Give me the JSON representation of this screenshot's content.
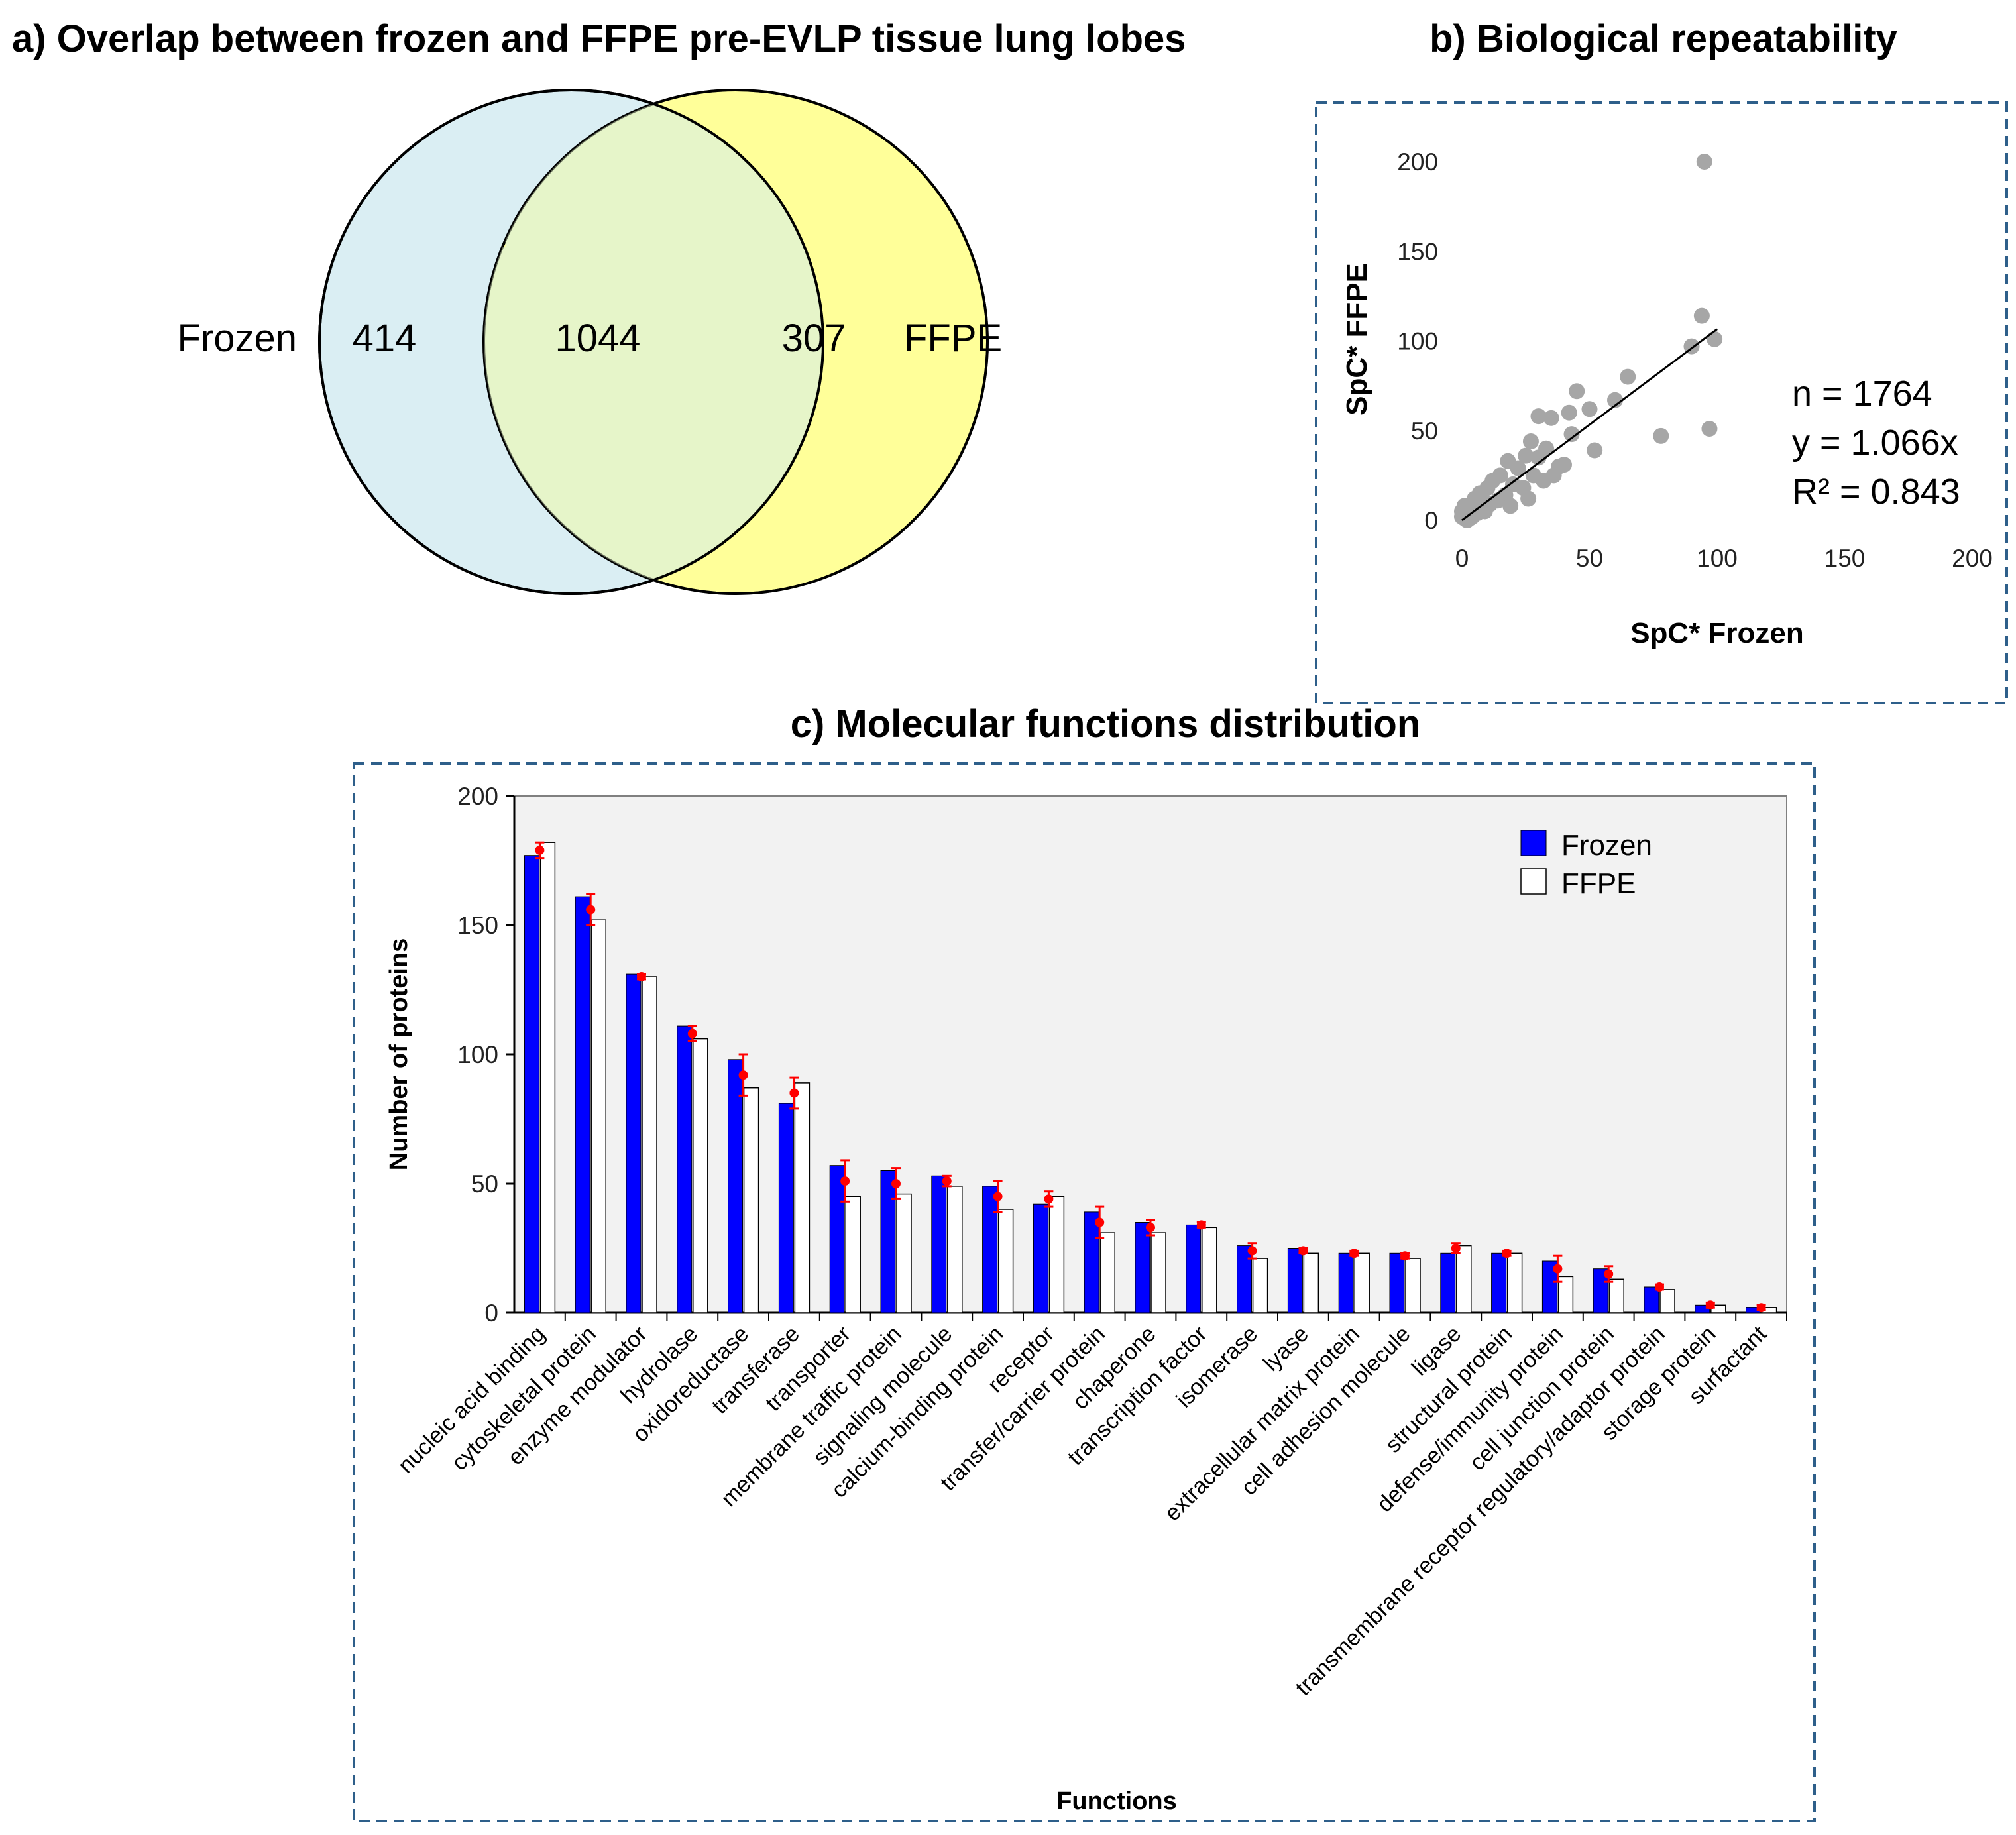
{
  "panel_a": {
    "title": "a) Overlap between frozen and FFPE pre-EVLP tissue lung lobes",
    "left_label": "Frozen",
    "right_label": "FFPE",
    "left_only": "414",
    "overlap": "1044",
    "right_only": "307",
    "left_color": "#daeef3",
    "right_color": "#ffff99"
  },
  "panel_b": {
    "title": "b) Biological repeatability",
    "stats": {
      "n": "n = 1764",
      "eq": "y = 1.066x",
      "r2": "R² = 0.843"
    }
  },
  "panel_c": {
    "title": "c) Molecular functions distribution"
  },
  "chart_data": [
    {
      "type": "scatter",
      "xlabel": "SpC* Frozen",
      "ylabel": "SpC* FFPE",
      "xlim": [
        0,
        200
      ],
      "ylim": [
        0,
        200
      ],
      "xticks": [
        0,
        50,
        100,
        150,
        200
      ],
      "yticks": [
        0,
        50,
        100,
        150,
        200
      ],
      "grid": false,
      "point_color": "#a6a6a6",
      "trendline": {
        "slope": 1.066,
        "x_range": [
          0,
          100
        ]
      },
      "points": [
        [
          95,
          200
        ],
        [
          94,
          114
        ],
        [
          90,
          97
        ],
        [
          99,
          101
        ],
        [
          97,
          51
        ],
        [
          78,
          47
        ],
        [
          65,
          80
        ],
        [
          60,
          67
        ],
        [
          52,
          39
        ],
        [
          45,
          72
        ],
        [
          50,
          62
        ],
        [
          43,
          48
        ],
        [
          35,
          57
        ],
        [
          30,
          58
        ],
        [
          27,
          44
        ],
        [
          33,
          40
        ],
        [
          38,
          30
        ],
        [
          30,
          35
        ],
        [
          25,
          36
        ],
        [
          22,
          29
        ],
        [
          18,
          33
        ],
        [
          15,
          25
        ],
        [
          20,
          20
        ],
        [
          12,
          22
        ],
        [
          10,
          18
        ],
        [
          28,
          25
        ],
        [
          24,
          18
        ],
        [
          32,
          22
        ],
        [
          17,
          14
        ],
        [
          8,
          10
        ],
        [
          5,
          12
        ],
        [
          3,
          6
        ],
        [
          6,
          4
        ],
        [
          2,
          3
        ],
        [
          1,
          1
        ],
        [
          4,
          2
        ],
        [
          9,
          5
        ],
        [
          11,
          9
        ],
        [
          14,
          11
        ],
        [
          7,
          15
        ],
        [
          0,
          2
        ],
        [
          0,
          5
        ],
        [
          1,
          8
        ],
        [
          2,
          0
        ],
        [
          3,
          1
        ],
        [
          40,
          31
        ],
        [
          36,
          25
        ],
        [
          42,
          60
        ],
        [
          26,
          12
        ],
        [
          19,
          8
        ]
      ]
    },
    {
      "type": "bar",
      "xlabel": "Functions",
      "ylabel": "Number of proteins",
      "ylim": [
        0,
        200
      ],
      "yticks": [
        0,
        50,
        100,
        150,
        200
      ],
      "grid": false,
      "legend_position": "top-right",
      "categories": [
        "nucleic acid binding",
        "cytoskeletal protein",
        "enzyme modulator",
        "hydrolase",
        "oxidoreductase",
        "transferase",
        "transporter",
        "membrane traffic protein",
        "signaling molecule",
        "calcium-binding protein",
        "receptor",
        "transfer/carrier protein",
        "chaperone",
        "transcription factor",
        "isomerase",
        "lyase",
        "extracellular matrix protein",
        "cell adhesion molecule",
        "ligase",
        "structural protein",
        "defense/immunity protein",
        "cell junction protein",
        "transmembrane receptor regulatory/adaptor protein",
        "storage protein",
        "surfactant"
      ],
      "series": [
        {
          "name": "Frozen",
          "color": "#0000ff",
          "values": [
            177,
            161,
            131,
            111,
            98,
            81,
            57,
            55,
            53,
            49,
            42,
            39,
            35,
            34,
            26,
            25,
            23,
            23,
            23,
            23,
            20,
            17,
            10,
            3,
            2
          ]
        },
        {
          "name": "FFPE",
          "color": "#ffffff",
          "values": [
            182,
            152,
            130,
            106,
            87,
            89,
            45,
            46,
            49,
            40,
            45,
            31,
            31,
            33,
            21,
            23,
            23,
            21,
            26,
            23,
            14,
            13,
            9,
            3,
            2
          ]
        }
      ],
      "mean_marker": {
        "color": "#ff0000",
        "values": [
          179,
          156,
          130,
          108,
          92,
          85,
          51,
          50,
          51,
          45,
          44,
          35,
          33,
          34,
          24,
          24,
          23,
          22,
          25,
          23,
          17,
          15,
          10,
          3,
          2
        ],
        "error": [
          3,
          6,
          1,
          3,
          8,
          6,
          8,
          6,
          2,
          6,
          3,
          6,
          3,
          1,
          3,
          1,
          1,
          1,
          2,
          1,
          5,
          3,
          1,
          1,
          1
        ]
      }
    }
  ]
}
